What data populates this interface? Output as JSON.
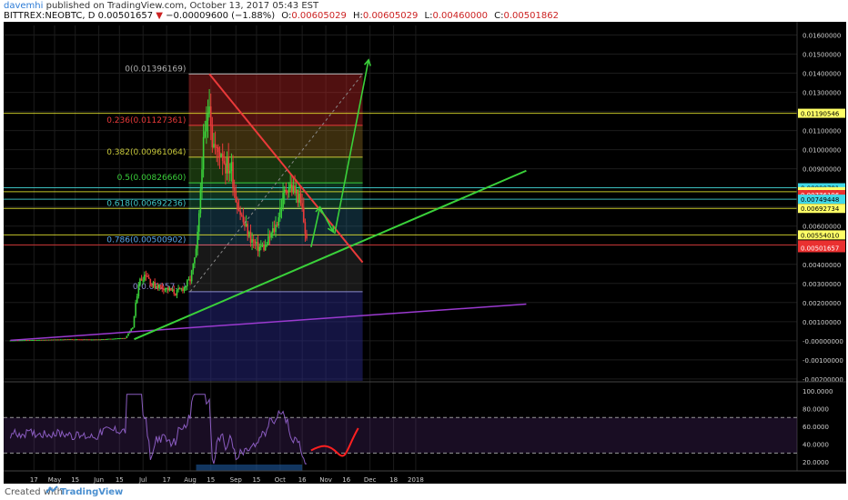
{
  "header": {
    "user": "davemhi",
    "published": "published on TradingView.com, October 13, 2017 05:43 EST",
    "symbol": "BITTREX:NEOBTC, D",
    "price": "0.00501657",
    "change_arrow": "▼",
    "change": "−0.00009600 (−1.88%)",
    "o_label": "O:",
    "o_value": "0.00605029",
    "h_label": "H:",
    "h_value": "0.00605029",
    "l_label": "L:",
    "l_value": "0.00460000",
    "c_label": "C:",
    "c_value": "0.00501862"
  },
  "footer": {
    "created": "Created with",
    "brand": "TradingView"
  },
  "colors": {
    "green": "#3ad13a",
    "red": "#ea3a3a",
    "yellow": "#e8e830",
    "purple": "#9b3ad0",
    "cyan": "#40d8d8",
    "rsi": "#8a5cc0",
    "grid": "#1c1c1c"
  },
  "chart_data": {
    "type": "candlestick",
    "x_tick_labels": [
      "17",
      "May",
      "15",
      "Jun",
      "15",
      "Jul",
      "17",
      "Aug",
      "15",
      "Sep",
      "15",
      "Oct",
      "16",
      "Nov",
      "16",
      "Dec",
      "18",
      "2018"
    ],
    "y_tick_labels": [
      "0.01600000",
      "0.01500000",
      "0.01400000",
      "0.01300000",
      "0.01200000",
      "0.01100000",
      "0.01000000",
      "0.00900000",
      "0.00800000",
      "0.00700000",
      "0.00600000",
      "0.00500000",
      "0.00400000",
      "0.00300000",
      "0.00200000",
      "0.00100000",
      "-0.00000000",
      "-0.00100000",
      "-0.00200000"
    ],
    "y_range": [
      -0.0021,
      0.0165
    ],
    "fib_levels": [
      {
        "label": "0(0.01396169)",
        "value": 0.01396169,
        "color": "#b0b0b0"
      },
      {
        "label": "0.236(0.01127361)",
        "value": 0.01127361,
        "color": "#ea3a3a"
      },
      {
        "label": "0.382(0.00961064)",
        "value": 0.00961064,
        "color": "#c8c83a"
      },
      {
        "label": "0.5(0.00826660)",
        "value": 0.0082666,
        "color": "#3ad13a"
      },
      {
        "label": "0.618(0.00692236)",
        "value": 0.00692236,
        "color": "#40c8c8"
      },
      {
        "label": "0.786(0.00500902)",
        "value": 0.00500902,
        "color": "#5aa8ea"
      },
      {
        "label": "0(0.00257...)",
        "value": 0.00257,
        "color": "#8a8ad0"
      }
    ],
    "price_labels": [
      {
        "value": "0.01190546",
        "bg": "#ffff66",
        "fg": "#000000",
        "y": 0.01190546
      },
      {
        "value": "0.00800781",
        "bg": "#40d8e8",
        "fg": "#000000",
        "y": 0.00800781
      },
      {
        "value": "0.00780116",
        "bg": "#ffff66",
        "fg": "#000000",
        "y": 0.00780116
      },
      {
        "value": "0.00776196",
        "bg": "#ea3030",
        "fg": "#ffffff",
        "y": 0.00765
      },
      {
        "value": "0.00749448",
        "bg": "#40d8e8",
        "fg": "#000000",
        "y": 0.00741
      },
      {
        "value": "0.00692734",
        "bg": "#ffff66",
        "fg": "#000000",
        "y": 0.00692734
      },
      {
        "value": "0.00554010",
        "bg": "#ffff66",
        "fg": "#000000",
        "y": 0.0055401
      },
      {
        "value": "0.00501862",
        "bg": "#ea3030",
        "fg": "#ffffff",
        "y": 0.00501862
      },
      {
        "value": "0.00501657",
        "bg": "#ea3030",
        "fg": "#ffffff",
        "y": 0.00487
      }
    ],
    "rsi_tick_labels": [
      "100.0000",
      "80.0000",
      "60.0000",
      "40.0000",
      "20.0000"
    ],
    "rsi_range": [
      10,
      108
    ]
  }
}
